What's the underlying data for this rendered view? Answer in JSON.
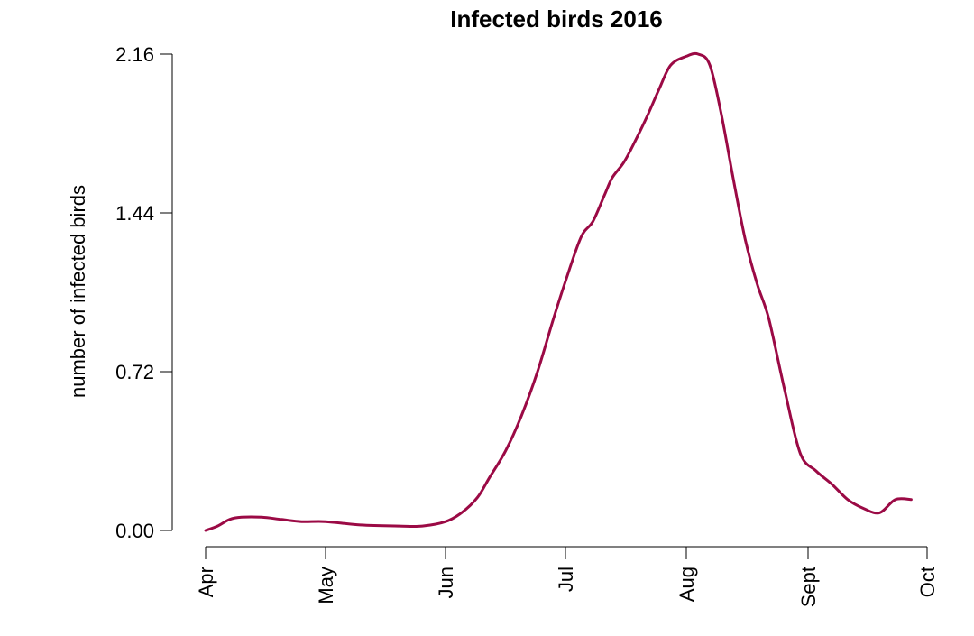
{
  "chart_data": {
    "type": "line",
    "title": "Infected birds 2016",
    "xlabel": "",
    "ylabel": "number of infected birds",
    "x_tick_labels": [
      "Apr",
      "May",
      "Jun",
      "Jul",
      "Aug",
      "Sept",
      "Oct"
    ],
    "y_tick_labels": [
      "0.00",
      "0.72",
      "1.44",
      "2.16"
    ],
    "ylim": [
      0,
      2.16
    ],
    "grid": false,
    "series_color": "#9B0A45",
    "series": [
      {
        "x": [
          "2016-04-01",
          "2016-04-04",
          "2016-04-07",
          "2016-04-10",
          "2016-04-15",
          "2016-04-20",
          "2016-04-25",
          "2016-05-01",
          "2016-05-10",
          "2016-05-20",
          "2016-05-26",
          "2016-06-01",
          "2016-06-05",
          "2016-06-09",
          "2016-06-12",
          "2016-06-16",
          "2016-06-20",
          "2016-06-24",
          "2016-06-28",
          "2016-07-01",
          "2016-07-05",
          "2016-07-08",
          "2016-07-11",
          "2016-07-13",
          "2016-07-16",
          "2016-07-19",
          "2016-07-22",
          "2016-07-25",
          "2016-07-28",
          "2016-08-01",
          "2016-08-04",
          "2016-08-07",
          "2016-08-10",
          "2016-08-13",
          "2016-08-16",
          "2016-08-19",
          "2016-08-22",
          "2016-08-26",
          "2016-08-30",
          "2016-09-03",
          "2016-09-07",
          "2016-09-11",
          "2016-09-15",
          "2016-09-19",
          "2016-09-23",
          "2016-09-27"
        ],
        "y": [
          0.0,
          0.02,
          0.05,
          0.06,
          0.06,
          0.05,
          0.04,
          0.04,
          0.025,
          0.02,
          0.02,
          0.04,
          0.08,
          0.15,
          0.24,
          0.36,
          0.52,
          0.72,
          0.96,
          1.13,
          1.33,
          1.4,
          1.52,
          1.6,
          1.67,
          1.77,
          1.88,
          2.0,
          2.11,
          2.15,
          2.16,
          2.11,
          1.88,
          1.59,
          1.32,
          1.12,
          0.96,
          0.64,
          0.35,
          0.27,
          0.21,
          0.14,
          0.1,
          0.08,
          0.14,
          0.14
        ]
      }
    ]
  }
}
